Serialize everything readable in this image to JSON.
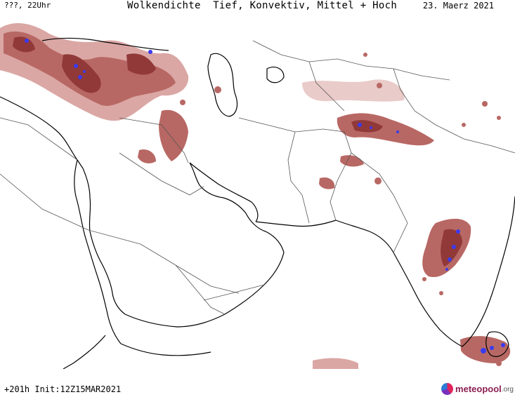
{
  "header": {
    "left": "???, 22Uhr",
    "title": "Wolkendichte  Tief, Konvektiv, Mittel + Hoch",
    "date": "23. Maerz 2021"
  },
  "footer": {
    "run": "+201h Init:12Z15MAR2021",
    "logo_name": "meteopool",
    "logo_tld": ".org"
  },
  "colors": {
    "cloud_light": "#d9a3a0",
    "cloud_medium": "#b5605c",
    "cloud_dense": "#8c2f2f",
    "convective": "#3a3af0",
    "coast": "#000000",
    "border": "#555555"
  }
}
